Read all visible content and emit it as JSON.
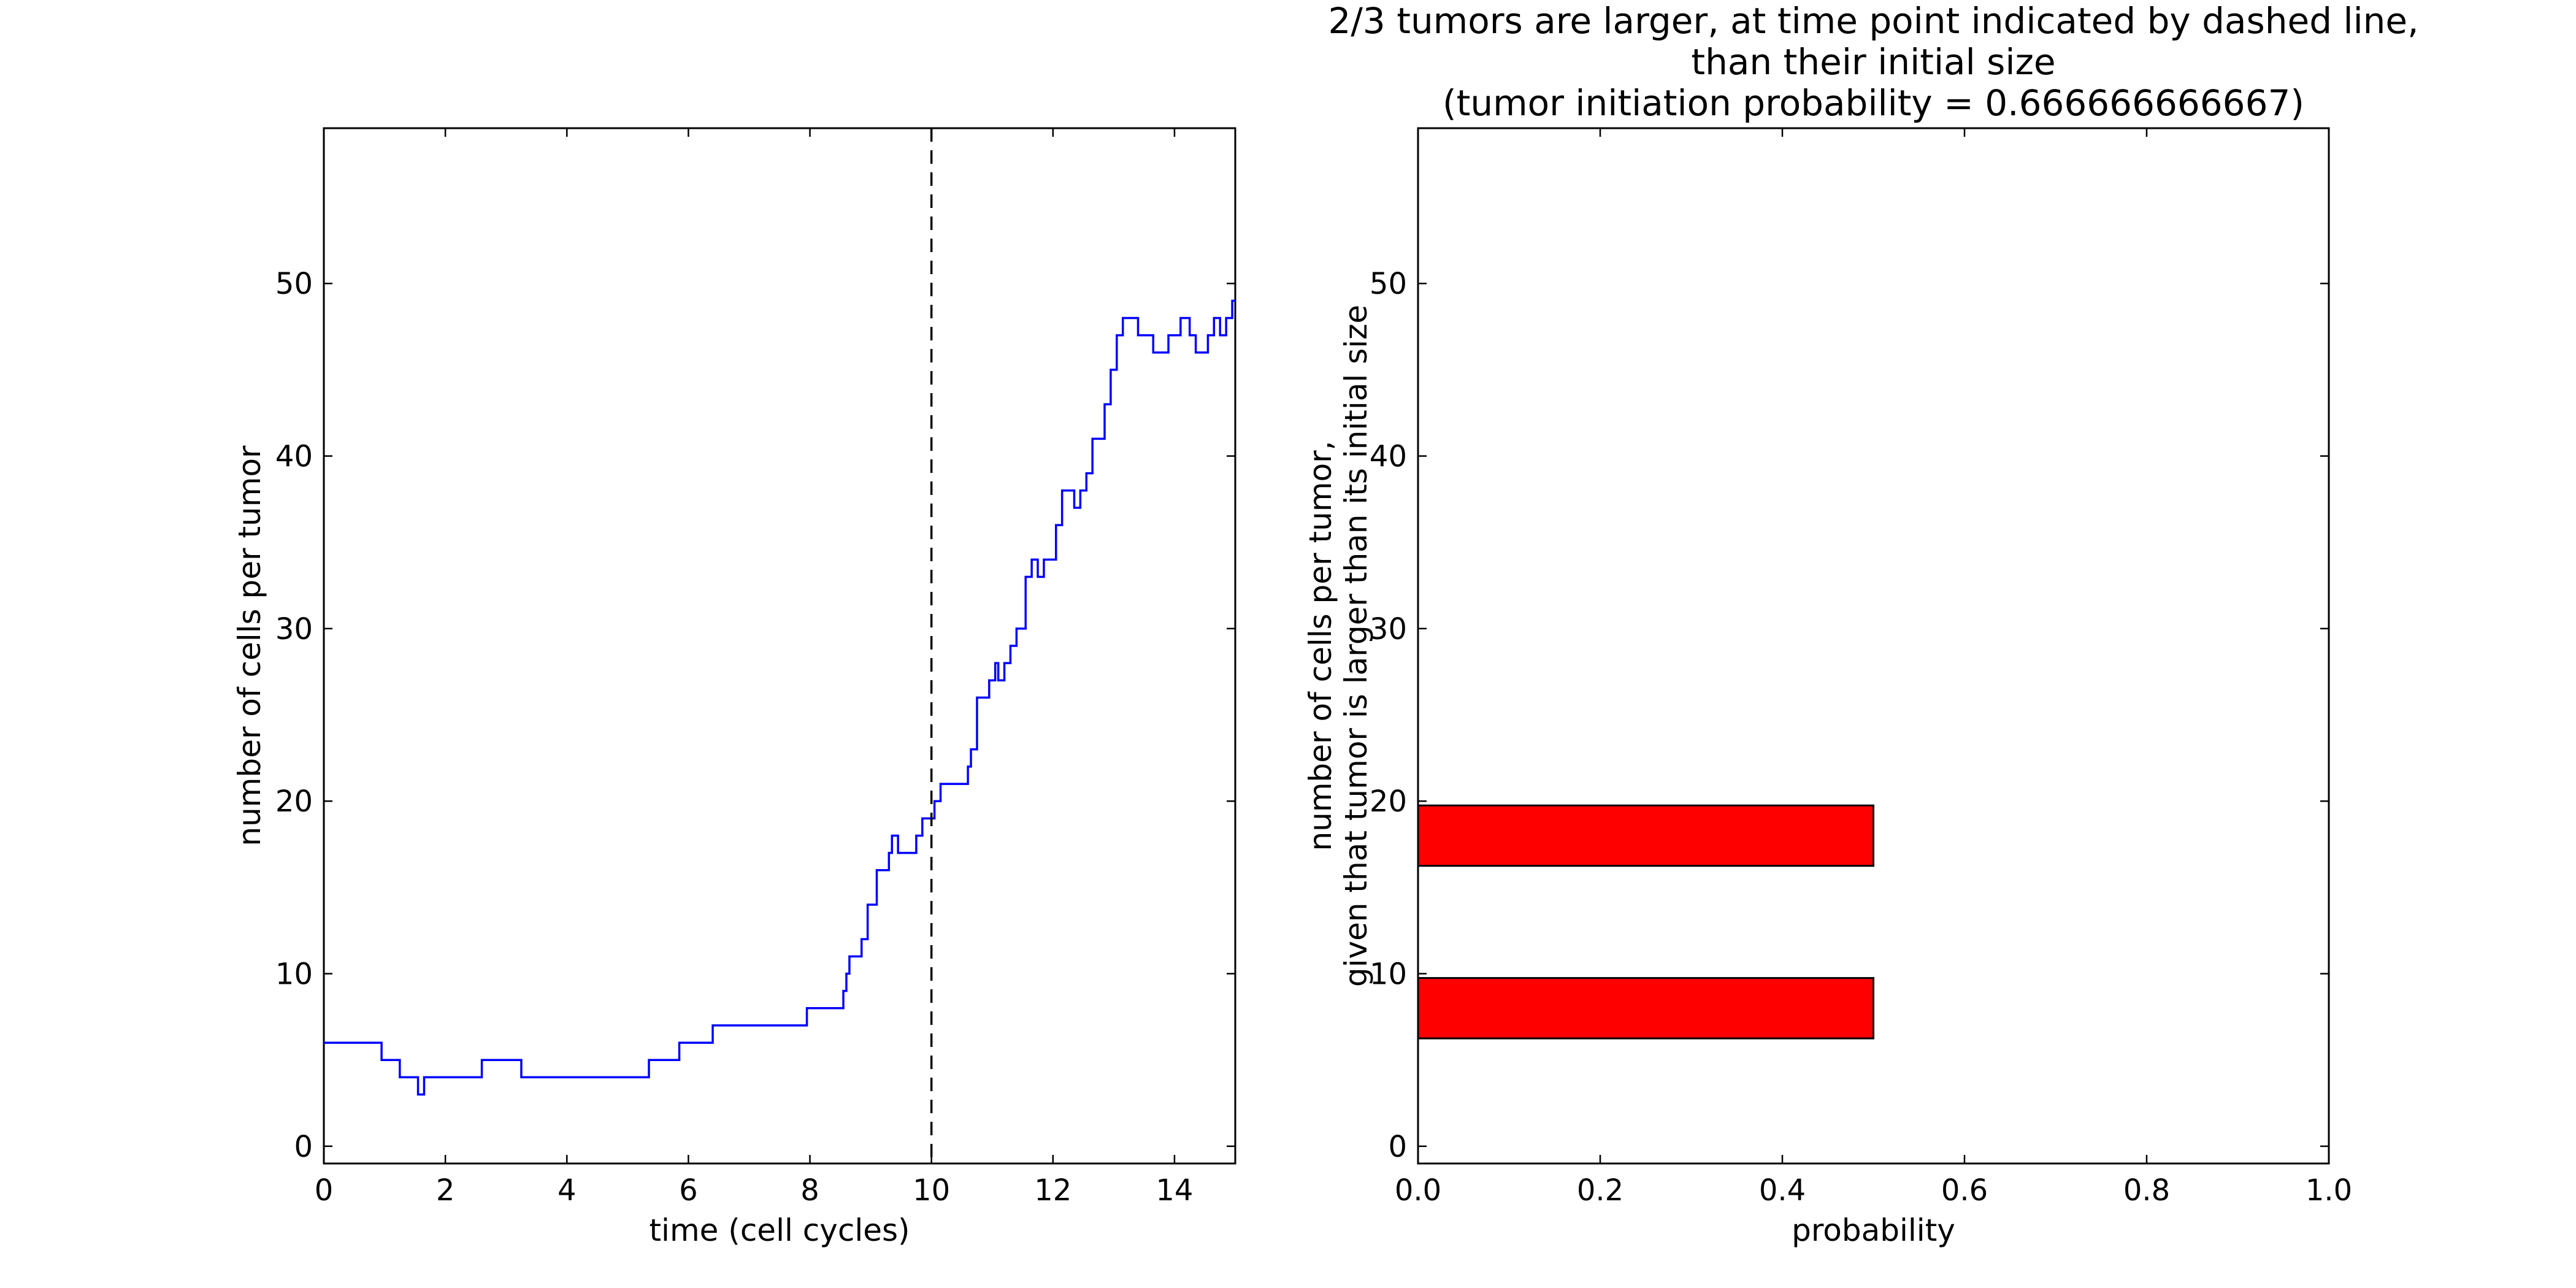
{
  "chart_data": [
    {
      "type": "line",
      "title": "",
      "xlabel": "time (cell cycles)",
      "ylabel": "number of  cells per tumor",
      "xlim": [
        0,
        15
      ],
      "ylim": [
        -1,
        59
      ],
      "xticks": [
        0,
        2,
        4,
        6,
        8,
        10,
        12,
        14
      ],
      "yticks": [
        0,
        10,
        20,
        30,
        40,
        50
      ],
      "grid": false,
      "vline": {
        "x": 10,
        "style": "dashed",
        "color": "#000000"
      },
      "series": [
        {
          "color": "#0000ff",
          "x": [
            0,
            0.95,
            0.95,
            1.25,
            1.25,
            1.55,
            1.55,
            1.65,
            1.65,
            2.6,
            2.6,
            3.25,
            3.25,
            5.35,
            5.35,
            5.85,
            5.85,
            6.4,
            6.4,
            7.95,
            7.95,
            8.55,
            8.55,
            8.6,
            8.6,
            8.65,
            8.65,
            8.85,
            8.85,
            8.95,
            8.95,
            9.1,
            9.1,
            9.3,
            9.3,
            9.35,
            9.35,
            9.45,
            9.45,
            9.75,
            9.75,
            9.85,
            9.85,
            10.05,
            10.05,
            10.15,
            10.15,
            10.6,
            10.6,
            10.65,
            10.65,
            10.75,
            10.75,
            10.95,
            10.95,
            11.05,
            11.05,
            11.1,
            11.1,
            11.2,
            11.2,
            11.3,
            11.3,
            11.4,
            11.4,
            11.55,
            11.55,
            11.65,
            11.65,
            11.75,
            11.75,
            11.85,
            11.85,
            12.05,
            12.05,
            12.15,
            12.15,
            12.35,
            12.35,
            12.45,
            12.45,
            12.55,
            12.55,
            12.65,
            12.65,
            12.85,
            12.85,
            12.95,
            12.95,
            13.05,
            13.05,
            13.15,
            13.15,
            13.4,
            13.4,
            13.65,
            13.65,
            13.9,
            13.9,
            14.1,
            14.1,
            14.25,
            14.25,
            14.35,
            14.35,
            14.55,
            14.55,
            14.65,
            14.65,
            14.75,
            14.75,
            14.85,
            14.85,
            14.95,
            14.95,
            15
          ],
          "y": [
            6,
            6,
            5,
            5,
            4,
            4,
            3,
            3,
            4,
            4,
            5,
            5,
            4,
            4,
            5,
            5,
            6,
            6,
            7,
            7,
            8,
            8,
            9,
            9,
            10,
            10,
            11,
            11,
            12,
            12,
            14,
            14,
            16,
            16,
            17,
            17,
            18,
            18,
            17,
            17,
            18,
            18,
            19,
            19,
            20,
            20,
            21,
            21,
            22,
            22,
            23,
            23,
            26,
            26,
            27,
            27,
            28,
            28,
            27,
            27,
            28,
            28,
            29,
            29,
            30,
            30,
            33,
            33,
            34,
            34,
            33,
            33,
            34,
            34,
            36,
            36,
            38,
            38,
            37,
            37,
            38,
            38,
            39,
            39,
            41,
            41,
            43,
            43,
            45,
            45,
            47,
            47,
            48,
            48,
            47,
            47,
            46,
            46,
            47,
            47,
            48,
            48,
            47,
            47,
            46,
            46,
            47,
            47,
            48,
            48,
            47,
            47,
            48,
            48,
            49,
            49
          ]
        }
      ]
    },
    {
      "type": "bar",
      "orientation": "horizontal",
      "title": "2/3 tumors are larger, at time point indicated by dashed line,\nthan their initial size\n(tumor initiation probability = 0.666666666667)",
      "xlabel": "probability",
      "ylabel": "number of  cells per tumor,\ngiven that tumor is larger than its initial size",
      "xlim": [
        0,
        1
      ],
      "ylim": [
        -1,
        59
      ],
      "xticks": [
        "0.0",
        "0.2",
        "0.4",
        "0.6",
        "0.8",
        "1.0"
      ],
      "yticks": [
        0,
        10,
        20,
        30,
        40,
        50
      ],
      "grid": false,
      "bar_color": "#ff0000",
      "bars": [
        {
          "y_start": 6.25,
          "y_end": 9.75,
          "value": 0.5
        },
        {
          "y_start": 16.25,
          "y_end": 19.75,
          "value": 0.5
        }
      ]
    }
  ]
}
